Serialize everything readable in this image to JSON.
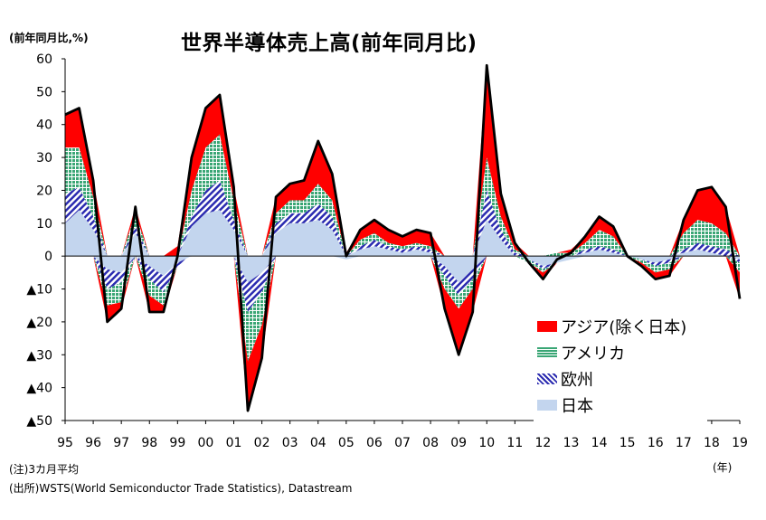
{
  "title": "世界半導体売上高(前年同月比)",
  "y_unit_label": "(前年同月比,%)",
  "x_unit_label": "(年)",
  "note": "(注)3カ月平均",
  "source": "(出所)WSTS(World Semiconductor Trade Statistics), Datastream",
  "colors": {
    "asia": "#ff0000",
    "america": "#3aa675",
    "europe": "#2b2bb0",
    "japan": "#c3d5ee",
    "total_line": "#000000"
  },
  "chart_data": {
    "type": "area",
    "title": "世界半導体売上高(前年同月比)",
    "ylabel": "(前年同月比,%)",
    "xlabel": "(年)",
    "ylim": [
      -50,
      60
    ],
    "yticks": [
      60,
      50,
      40,
      30,
      20,
      10,
      0,
      -10,
      -20,
      -30,
      -40,
      -50
    ],
    "ytick_labels": [
      "60",
      "50",
      "40",
      "30",
      "20",
      "10",
      "0",
      "▲10",
      "▲20",
      "▲30",
      "▲40",
      "▲50"
    ],
    "x_labels": [
      "95",
      "96",
      "97",
      "98",
      "99",
      "00",
      "01",
      "02",
      "03",
      "04",
      "05",
      "06",
      "07",
      "08",
      "09",
      "10",
      "11",
      "12",
      "13",
      "14",
      "15",
      "16",
      "17",
      "18",
      "19"
    ],
    "legend_position": "bottom-right",
    "grid": false,
    "stacked": true,
    "x": [
      1995.0,
      1995.5,
      1996.0,
      1996.5,
      1997.0,
      1997.5,
      1998.0,
      1998.5,
      1999.0,
      1999.5,
      2000.0,
      2000.5,
      2001.0,
      2001.5,
      2002.0,
      2002.5,
      2003.0,
      2003.5,
      2004.0,
      2004.5,
      2005.0,
      2005.5,
      2006.0,
      2006.5,
      2007.0,
      2007.5,
      2008.0,
      2008.5,
      2009.0,
      2009.5,
      2010.0,
      2010.5,
      2011.0,
      2011.5,
      2012.0,
      2012.5,
      2013.0,
      2013.5,
      2014.0,
      2014.5,
      2015.0,
      2015.5,
      2016.0,
      2016.5,
      2017.0,
      2017.5,
      2018.0,
      2018.5,
      2019.0
    ],
    "series": [
      {
        "name": "日本",
        "values": [
          10,
          14,
          8,
          -4,
          -5,
          7,
          -3,
          -6,
          -2,
          9,
          13,
          14,
          8,
          -8,
          -5,
          7,
          10,
          10,
          11,
          8,
          -1,
          2,
          3,
          2,
          1,
          2,
          1,
          -3,
          -8,
          -4,
          11,
          5,
          0,
          -1,
          -3,
          -2,
          -1,
          1,
          2,
          1,
          0,
          -1,
          -2,
          -1,
          1,
          2,
          1,
          0,
          -1
        ]
      },
      {
        "name": "欧州",
        "values": [
          9,
          7,
          4,
          -6,
          -3,
          2,
          -4,
          -5,
          -1,
          3,
          7,
          9,
          3,
          -9,
          -6,
          3,
          3,
          3,
          5,
          4,
          0,
          1,
          2,
          1,
          1,
          1,
          1,
          -3,
          -4,
          -3,
          9,
          3,
          1,
          0,
          -1,
          0,
          0,
          1,
          1,
          1,
          0,
          0,
          -1,
          -1,
          1,
          2,
          2,
          2,
          -1
        ]
      },
      {
        "name": "アメリカ",
        "values": [
          14,
          12,
          6,
          -5,
          -6,
          4,
          -5,
          -4,
          0,
          8,
          13,
          14,
          6,
          -15,
          -10,
          3,
          4,
          4,
          6,
          5,
          0,
          2,
          2,
          1,
          1,
          1,
          1,
          -4,
          -4,
          -3,
          10,
          4,
          1,
          -1,
          -1,
          1,
          1,
          2,
          5,
          4,
          0,
          -1,
          -2,
          -2,
          5,
          7,
          7,
          5,
          -3
        ]
      },
      {
        "name": "アジア(除く日本)",
        "values": [
          10,
          12,
          5,
          -5,
          -2,
          2,
          -5,
          -2,
          3,
          10,
          12,
          12,
          4,
          -15,
          -10,
          5,
          5,
          6,
          13,
          8,
          1,
          3,
          4,
          4,
          3,
          4,
          4,
          -6,
          -14,
          -7,
          28,
          7,
          2,
          0,
          -2,
          0,
          1,
          2,
          4,
          3,
          0,
          -1,
          -2,
          -2,
          4,
          9,
          11,
          8,
          -8
        ]
      }
    ],
    "total": [
      43,
      45,
      23,
      -20,
      -16,
      15,
      -17,
      -17,
      0,
      30,
      45,
      49,
      21,
      -47,
      -31,
      18,
      22,
      23,
      35,
      25,
      0,
      8,
      11,
      8,
      6,
      8,
      7,
      -16,
      -30,
      -17,
      58,
      19,
      4,
      -2,
      -7,
      -1,
      1,
      6,
      12,
      9,
      0,
      -3,
      -7,
      -6,
      11,
      20,
      21,
      15,
      -13
    ]
  }
}
